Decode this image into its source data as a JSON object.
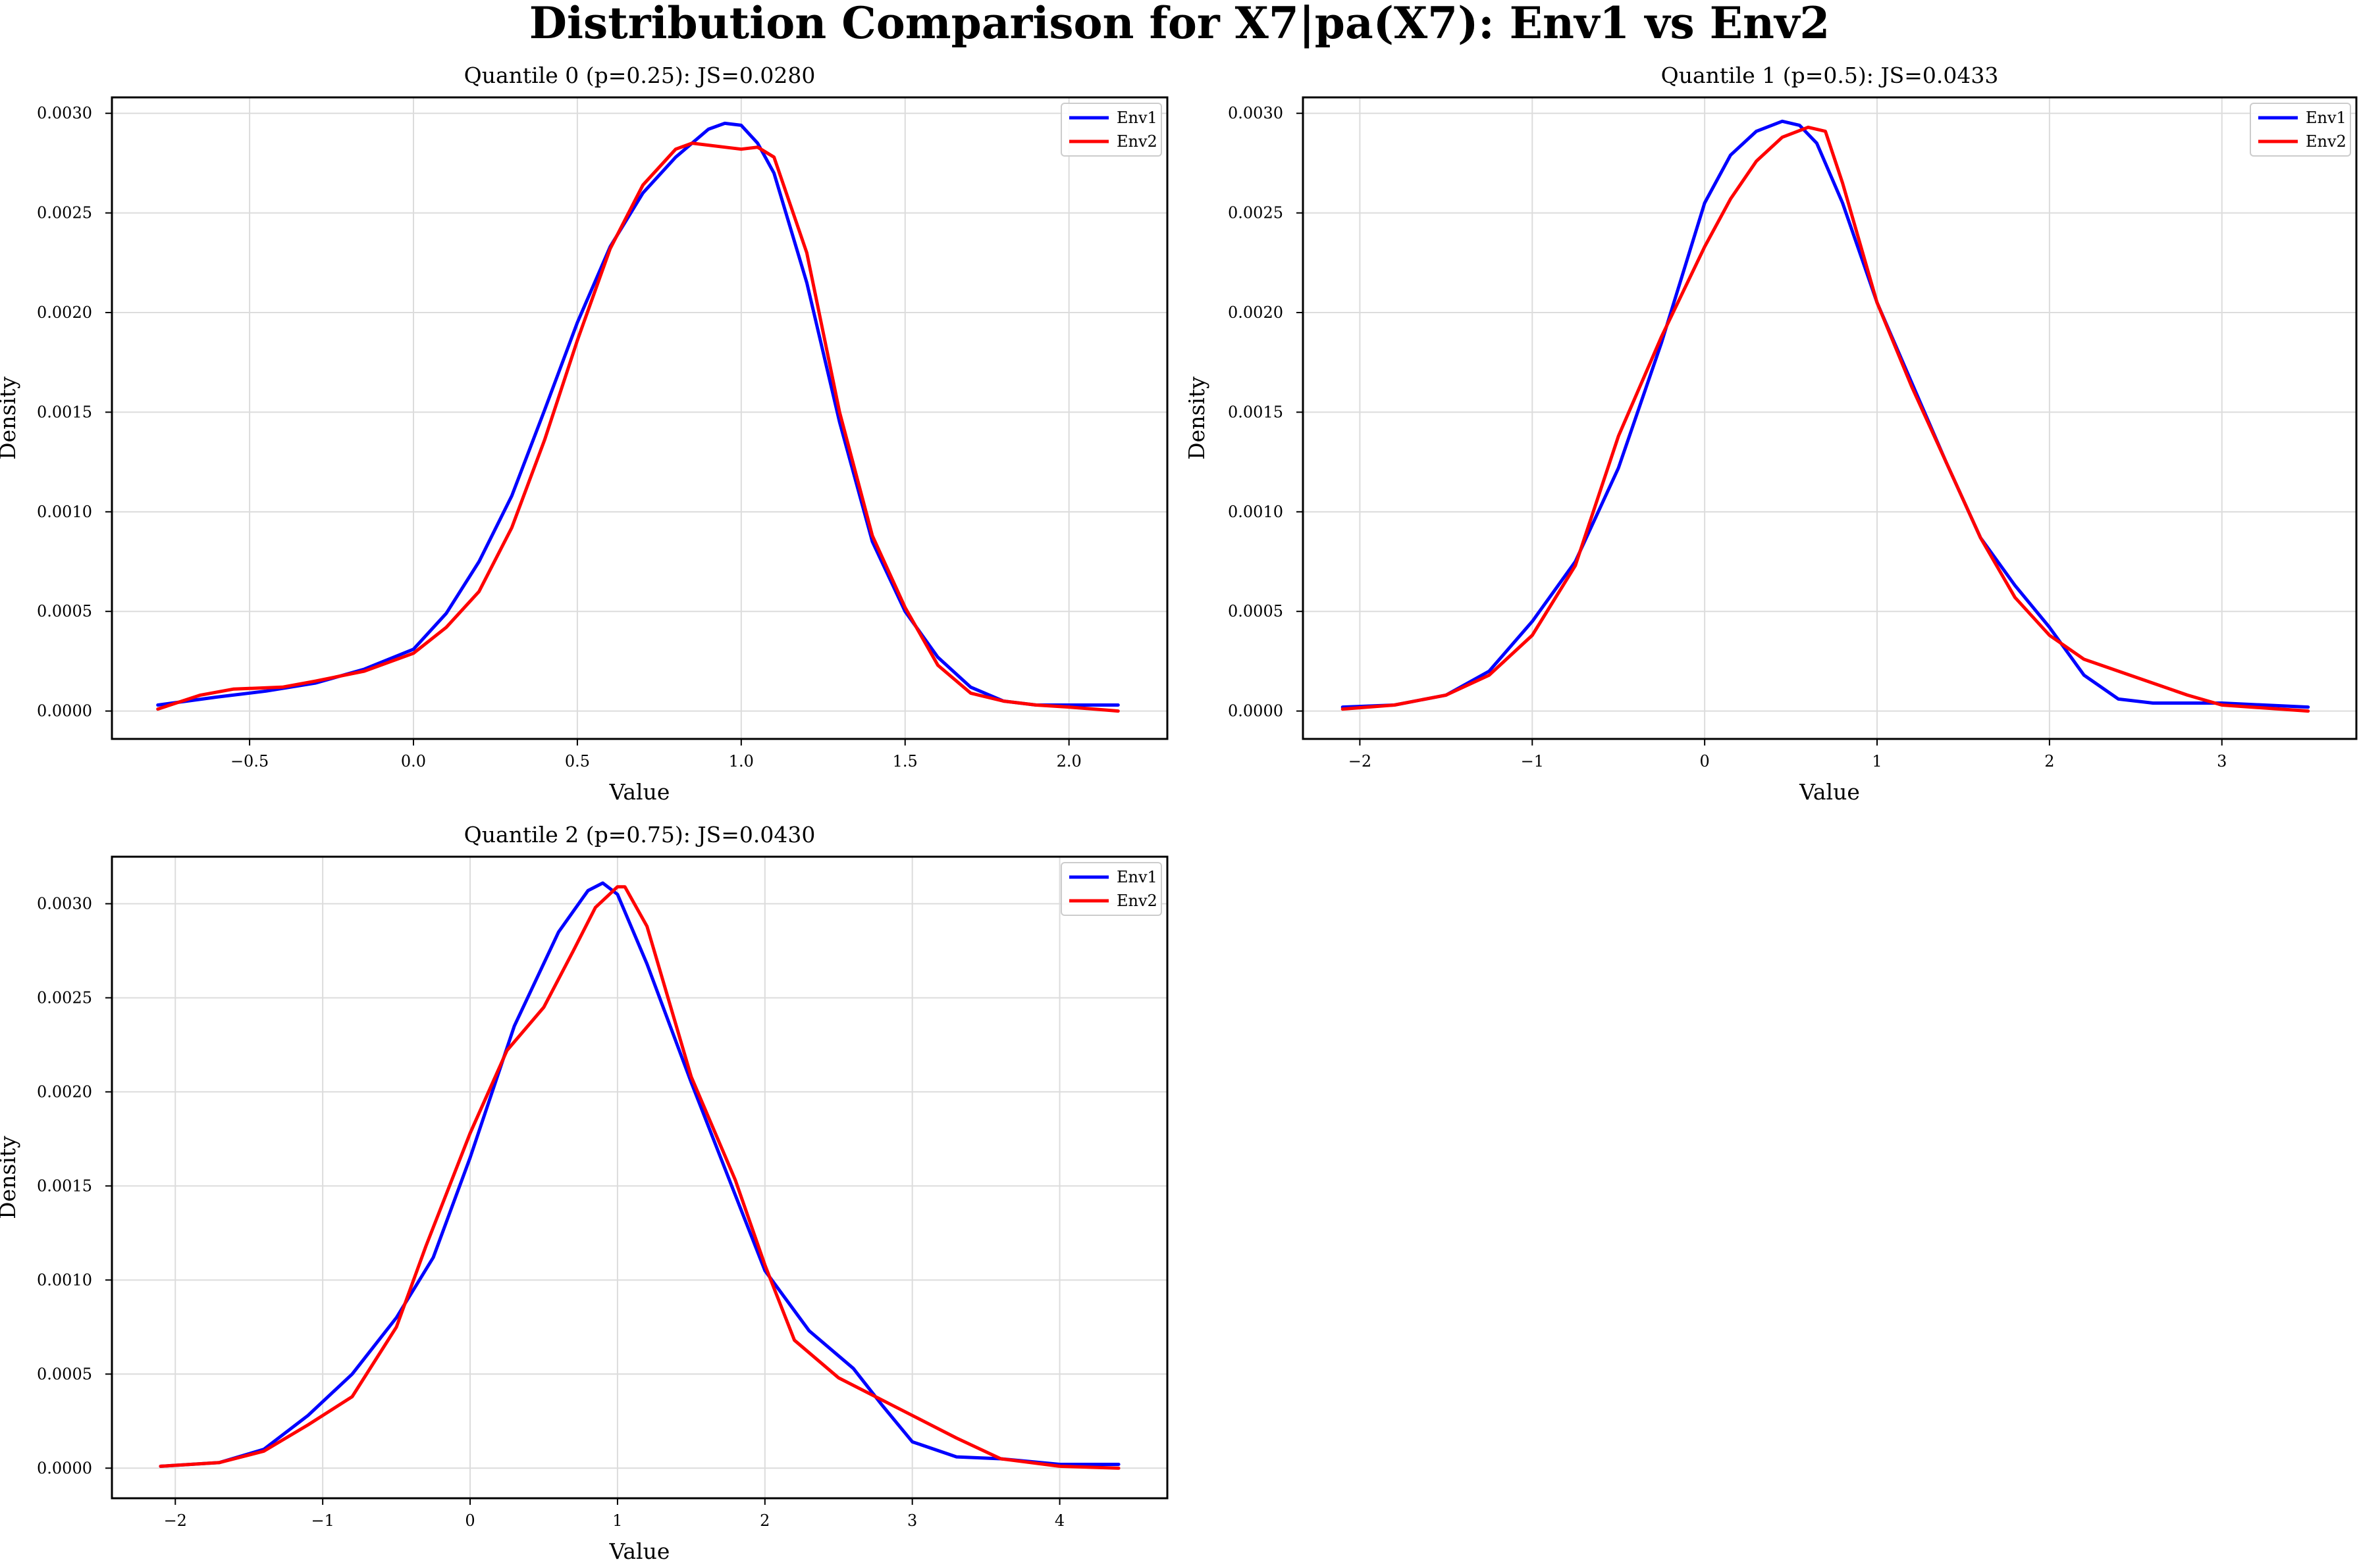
{
  "figure": {
    "title": "Distribution Comparison for X7|pa(X7): Env1 vs Env2"
  },
  "colors": {
    "Env1": "#0000ff",
    "Env2": "#ff0000",
    "grid": "#dcdcdc",
    "axis": "#000000"
  },
  "chart_data": [
    {
      "type": "line",
      "title": "Quantile 0 (p=0.25): JS=0.0280",
      "xlabel": "Value",
      "ylabel": "Density",
      "xlim": [
        -0.92,
        2.3
      ],
      "ylim": [
        -0.00014,
        0.00308
      ],
      "xticks": [
        -0.5,
        0.0,
        0.5,
        1.0,
        1.5,
        2.0
      ],
      "xtick_labels": [
        "−0.5",
        "0.0",
        "0.5",
        "1.0",
        "1.5",
        "2.0"
      ],
      "yticks": [
        0.0,
        0.0005,
        0.001,
        0.0015,
        0.002,
        0.0025,
        0.003
      ],
      "ytick_labels": [
        "0.0000",
        "0.0005",
        "0.0010",
        "0.0015",
        "0.0020",
        "0.0025",
        "0.0030"
      ],
      "grid": true,
      "legend": "top-right",
      "series": [
        {
          "name": "Env1",
          "x": [
            -0.78,
            -0.6,
            -0.45,
            -0.3,
            -0.15,
            0.0,
            0.1,
            0.2,
            0.3,
            0.4,
            0.5,
            0.6,
            0.7,
            0.8,
            0.9,
            0.95,
            1.0,
            1.05,
            1.1,
            1.2,
            1.3,
            1.4,
            1.5,
            1.6,
            1.7,
            1.8,
            1.9,
            2.0,
            2.15
          ],
          "y": [
            3e-05,
            7e-05,
            0.0001,
            0.00014,
            0.00021,
            0.00031,
            0.00049,
            0.00075,
            0.00108,
            0.00151,
            0.00195,
            0.00233,
            0.0026,
            0.00278,
            0.00292,
            0.00295,
            0.00294,
            0.00285,
            0.0027,
            0.00215,
            0.00145,
            0.00085,
            0.0005,
            0.00027,
            0.00012,
            5e-05,
            3e-05,
            3e-05,
            3e-05
          ]
        },
        {
          "name": "Env2",
          "x": [
            -0.78,
            -0.65,
            -0.55,
            -0.4,
            -0.3,
            -0.15,
            0.0,
            0.1,
            0.2,
            0.3,
            0.4,
            0.5,
            0.6,
            0.7,
            0.8,
            0.85,
            0.95,
            1.0,
            1.05,
            1.1,
            1.2,
            1.3,
            1.4,
            1.5,
            1.6,
            1.7,
            1.8,
            1.9,
            2.0,
            2.15
          ],
          "y": [
            1e-05,
            8e-05,
            0.00011,
            0.00012,
            0.00015,
            0.0002,
            0.00029,
            0.00042,
            0.0006,
            0.00092,
            0.00136,
            0.00186,
            0.00232,
            0.00264,
            0.00282,
            0.00285,
            0.00283,
            0.00282,
            0.00283,
            0.00278,
            0.0023,
            0.0015,
            0.00088,
            0.00052,
            0.00023,
            9e-05,
            5e-05,
            3e-05,
            2e-05,
            0.0
          ]
        }
      ]
    },
    {
      "type": "line",
      "title": "Quantile 1 (p=0.5): JS=0.0433",
      "xlabel": "Value",
      "ylabel": "Density",
      "xlim": [
        -2.33,
        3.78
      ],
      "ylim": [
        -0.00014,
        0.00308
      ],
      "xticks": [
        -2,
        -1,
        0,
        1,
        2,
        3
      ],
      "xtick_labels": [
        "−2",
        "−1",
        "0",
        "1",
        "2",
        "3"
      ],
      "yticks": [
        0.0,
        0.0005,
        0.001,
        0.0015,
        0.002,
        0.0025,
        0.003
      ],
      "ytick_labels": [
        "0.0000",
        "0.0005",
        "0.0010",
        "0.0015",
        "0.0020",
        "0.0025",
        "0.0030"
      ],
      "grid": true,
      "legend": "top-right",
      "series": [
        {
          "name": "Env1",
          "x": [
            -2.1,
            -1.8,
            -1.5,
            -1.25,
            -1.0,
            -0.75,
            -0.5,
            -0.25,
            0.0,
            0.15,
            0.3,
            0.45,
            0.55,
            0.65,
            0.8,
            1.0,
            1.2,
            1.4,
            1.6,
            1.8,
            2.0,
            2.2,
            2.4,
            2.6,
            2.8,
            3.0,
            3.5
          ],
          "y": [
            2e-05,
            3e-05,
            8e-05,
            0.0002,
            0.00045,
            0.00075,
            0.00122,
            0.00185,
            0.00255,
            0.00279,
            0.00291,
            0.00296,
            0.00294,
            0.00285,
            0.00255,
            0.00205,
            0.00165,
            0.00125,
            0.00087,
            0.00063,
            0.00042,
            0.00018,
            6e-05,
            4e-05,
            4e-05,
            4e-05,
            2e-05
          ]
        },
        {
          "name": "Env2",
          "x": [
            -2.1,
            -1.8,
            -1.5,
            -1.25,
            -1.0,
            -0.75,
            -0.5,
            -0.25,
            0.0,
            0.15,
            0.3,
            0.45,
            0.6,
            0.7,
            0.8,
            1.0,
            1.2,
            1.4,
            1.6,
            1.8,
            2.0,
            2.2,
            2.5,
            2.8,
            3.0,
            3.5
          ],
          "y": [
            1e-05,
            3e-05,
            8e-05,
            0.00018,
            0.00038,
            0.00073,
            0.00138,
            0.00188,
            0.00233,
            0.00257,
            0.00276,
            0.00288,
            0.00293,
            0.00291,
            0.00265,
            0.00205,
            0.00163,
            0.00125,
            0.00087,
            0.00057,
            0.00038,
            0.00026,
            0.00017,
            8e-05,
            3e-05,
            0.0
          ]
        }
      ]
    },
    {
      "type": "line",
      "title": "Quantile 2 (p=0.75): JS=0.0430",
      "xlabel": "Value",
      "ylabel": "Density",
      "xlim": [
        -2.43,
        4.73
      ],
      "ylim": [
        -0.00016,
        0.00325
      ],
      "xticks": [
        -2,
        -1,
        0,
        1,
        2,
        3,
        4
      ],
      "xtick_labels": [
        "−2",
        "−1",
        "0",
        "1",
        "2",
        "3",
        "4"
      ],
      "yticks": [
        0.0,
        0.0005,
        0.001,
        0.0015,
        0.002,
        0.0025,
        0.003
      ],
      "ytick_labels": [
        "0.0000",
        "0.0005",
        "0.0010",
        "0.0015",
        "0.0020",
        "0.0025",
        "0.0030"
      ],
      "grid": true,
      "legend": "top-right",
      "series": [
        {
          "name": "Env1",
          "x": [
            -2.1,
            -1.7,
            -1.4,
            -1.1,
            -0.8,
            -0.5,
            -0.25,
            0.0,
            0.3,
            0.6,
            0.8,
            0.9,
            1.0,
            1.2,
            1.5,
            1.8,
            2.0,
            2.3,
            2.6,
            2.8,
            3.0,
            3.3,
            3.6,
            4.0,
            4.4
          ],
          "y": [
            1e-05,
            3e-05,
            0.0001,
            0.00028,
            0.0005,
            0.0008,
            0.00112,
            0.00165,
            0.00235,
            0.00285,
            0.00307,
            0.00311,
            0.00305,
            0.00268,
            0.00205,
            0.00145,
            0.00105,
            0.00073,
            0.00053,
            0.00033,
            0.00014,
            6e-05,
            5e-05,
            2e-05,
            2e-05
          ]
        },
        {
          "name": "Env2",
          "x": [
            -2.1,
            -1.7,
            -1.4,
            -1.1,
            -0.8,
            -0.5,
            -0.3,
            0.0,
            0.25,
            0.5,
            0.7,
            0.85,
            1.0,
            1.05,
            1.2,
            1.5,
            1.8,
            2.0,
            2.2,
            2.5,
            2.8,
            3.0,
            3.3,
            3.6,
            4.0,
            4.4
          ],
          "y": [
            1e-05,
            3e-05,
            9e-05,
            0.00023,
            0.00038,
            0.00075,
            0.00118,
            0.00178,
            0.00222,
            0.00245,
            0.00275,
            0.00298,
            0.00309,
            0.00309,
            0.00288,
            0.00208,
            0.00153,
            0.00108,
            0.00068,
            0.00048,
            0.00036,
            0.00028,
            0.00016,
            5e-05,
            1e-05,
            0.0
          ]
        }
      ]
    }
  ]
}
